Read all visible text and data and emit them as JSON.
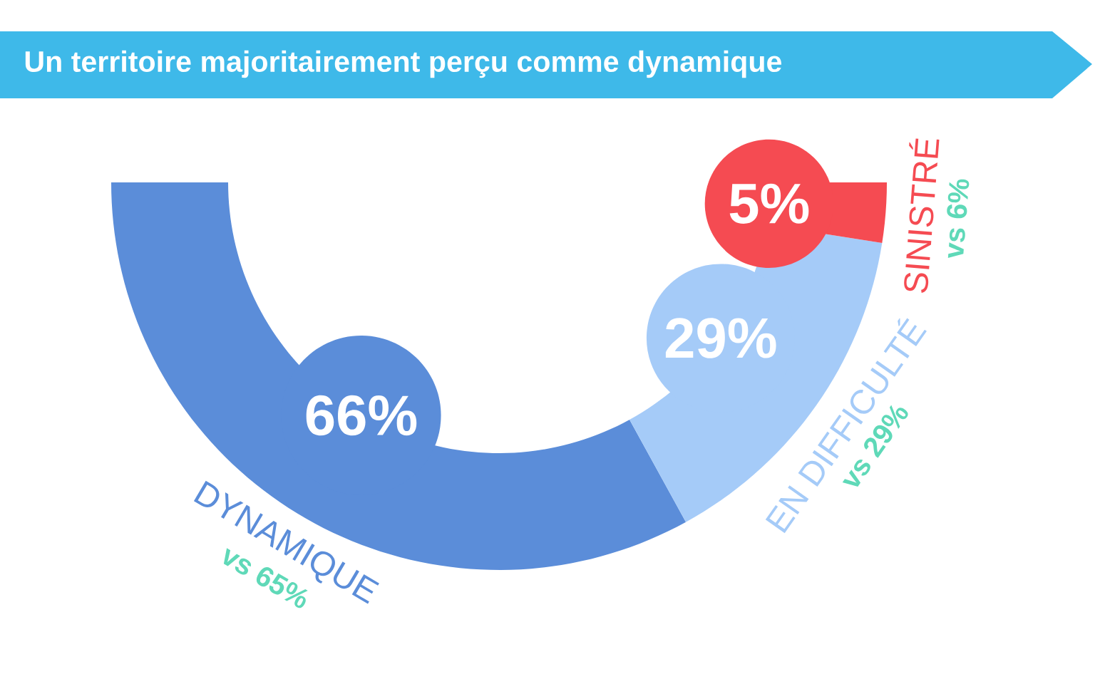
{
  "chart_data": {
    "type": "donut",
    "title": "Un territoire majoritairement perçu comme dynamique",
    "categories": [
      "DYNAMIQUE",
      "EN DIFFICULTÉ",
      "SINISTRÉ"
    ],
    "values": [
      66,
      29,
      5
    ],
    "colors": [
      "#5b8dd9",
      "#a5cbf8",
      "#f54b52"
    ],
    "value_labels": [
      "66%",
      "29%",
      "5%"
    ],
    "annotations": [
      "vs 65%",
      "vs 29%",
      "vs 6%"
    ]
  }
}
